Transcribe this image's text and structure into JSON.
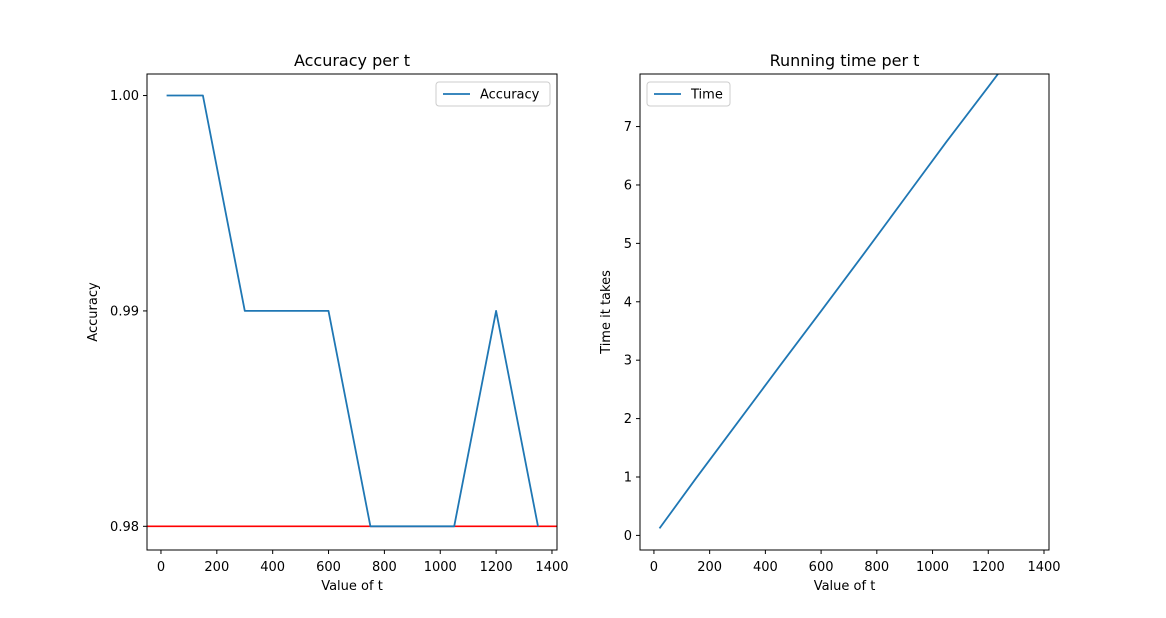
{
  "chart_data": [
    {
      "type": "line",
      "title": "Accuracy per t",
      "xlabel": "Value of t",
      "ylabel": "Accuracy",
      "xlim": [
        -50,
        1418
      ],
      "ylim": [
        0.9789,
        1.001
      ],
      "xticks": [
        0,
        200,
        400,
        600,
        800,
        1000,
        1200,
        1400
      ],
      "yticks": [
        0.98,
        0.99,
        1.0
      ],
      "ytick_labels": [
        "0.98",
        "0.99",
        "1.00"
      ],
      "legend_position": "upper right",
      "grid": false,
      "series": [
        {
          "name": "Accuracy",
          "color": "#1f77b4",
          "x": [
            20,
            150,
            300,
            450,
            600,
            750,
            900,
            1050,
            1200,
            1350
          ],
          "y": [
            1.0,
            1.0,
            0.99,
            0.99,
            0.99,
            0.98,
            0.98,
            0.98,
            0.99,
            0.98
          ]
        }
      ],
      "hline": {
        "y": 0.98,
        "color": "#ff0000"
      }
    },
    {
      "type": "line",
      "title": "Running time per t",
      "xlabel": "Value of t",
      "ylabel": "Time it takes",
      "xlim": [
        -50,
        1418
      ],
      "ylim": [
        -0.25,
        7.9
      ],
      "xticks": [
        0,
        200,
        400,
        600,
        800,
        1000,
        1200,
        1400
      ],
      "yticks": [
        0,
        1,
        2,
        3,
        4,
        5,
        6,
        7
      ],
      "ytick_labels": [
        "0",
        "1",
        "2",
        "3",
        "4",
        "5",
        "6",
        "7"
      ],
      "legend_position": "upper left",
      "grid": false,
      "series": [
        {
          "name": "Time",
          "color": "#1f77b4",
          "x": [
            20,
            150,
            300,
            450,
            600,
            750,
            900,
            1050,
            1200,
            1350
          ],
          "y": [
            0.12,
            0.97,
            1.93,
            2.89,
            3.84,
            4.8,
            5.77,
            6.74,
            7.68,
            8.63
          ]
        }
      ]
    }
  ]
}
